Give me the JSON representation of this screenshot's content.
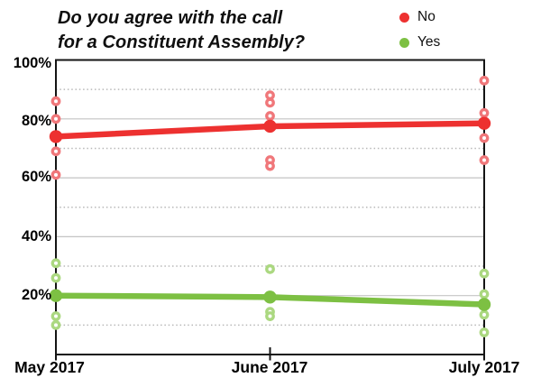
{
  "page": {
    "background": "#ffffff"
  },
  "chart_data": {
    "type": "line",
    "title_line1": "Do you agree with the call",
    "title_line2": "for a Constituent Assembly?",
    "categories": [
      "May 2017",
      "June 2017",
      "July 2017"
    ],
    "ylim": [
      0,
      100
    ],
    "ytick_labels": [
      "100%",
      "80%",
      "60%",
      "40%",
      "20%"
    ],
    "ytick_values": [
      100,
      80,
      60,
      40,
      20
    ],
    "grid_solid_values": [
      20,
      40,
      60,
      80
    ],
    "grid_dotted_values": [
      10,
      30,
      50,
      70,
      90
    ],
    "grid_on": true,
    "legend_position": "top-right",
    "axis_color": "#141414",
    "grid_solid_color": "#c4c4c4",
    "grid_dotted_color": "#b8b8b8",
    "series": [
      {
        "name": "No",
        "color": "#ed3130",
        "scatter_color": "#f0777a",
        "values": [
          74,
          77.5,
          78.5
        ],
        "scatter": [
          [
            86,
            80,
            69,
            61
          ],
          [
            88,
            85.5,
            81,
            66,
            64
          ],
          [
            93,
            82,
            73.5,
            66
          ]
        ]
      },
      {
        "name": "Yes",
        "color": "#7dc043",
        "scatter_color": "#abd880",
        "values": [
          20,
          19.5,
          17
        ],
        "scatter": [
          [
            31,
            26,
            13,
            10
          ],
          [
            29,
            14.5,
            13
          ],
          [
            27.5,
            20.5,
            13.5,
            7.5
          ]
        ]
      }
    ]
  }
}
